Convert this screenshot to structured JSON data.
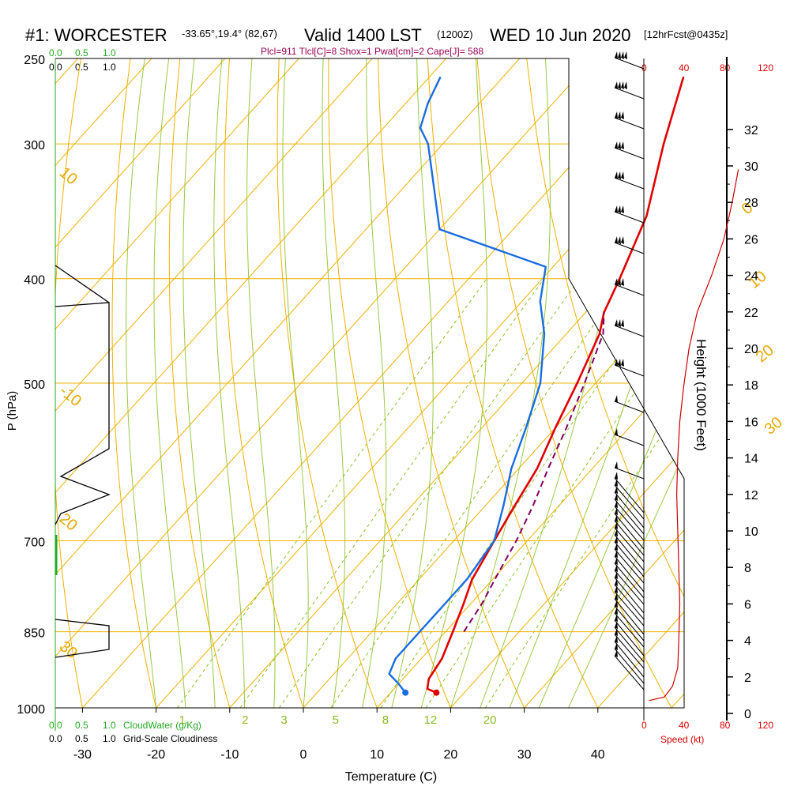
{
  "title": {
    "station": "#1: WORCESTER",
    "coords": "-33.65°,19.4° (82,67)",
    "valid": "Valid 1400 LST",
    "utc": "(1200Z)",
    "date": "WED 10 Jun 2020",
    "forecast": "[12hrFcst@0435z]"
  },
  "indices": "Plcl=911 Tlcl[C]=8 Shox=1 Pwat[cm]=2 Cape[J]= 588",
  "labels": {
    "ylabel": "P (hPa)",
    "xlabel": "Temperature (C)",
    "height_label": "Height (1000 Feet)",
    "speed_label": "Speed (kt)",
    "cloudwater_label": "CloudWater (g/Kg)",
    "cloudiness_label": "Grid-Scale Cloudiness"
  },
  "scales": {
    "cloudwater_ticks": [
      "0.0",
      "0.5",
      "1.0"
    ],
    "cloudiness_ticks": [
      "0.0",
      "0.5",
      "1.0"
    ],
    "speed_ticks": [
      "0",
      "40",
      "80",
      "120"
    ]
  },
  "colors": {
    "temperature": "#e00000",
    "dewpoint": "#1a6de0",
    "parcel": "#800060",
    "isobar": "#f0b000",
    "mixing_ratio": "#88c020",
    "cloudwater": "#22aa22",
    "wind_speed": "#cc0000"
  },
  "chart_data": {
    "type": "line",
    "y_scale": "log-pressure",
    "ylim": [
      1000,
      250
    ],
    "xlim": [
      -35,
      36
    ],
    "pressure_ticks": [
      250,
      300,
      400,
      500,
      700,
      850,
      1000
    ],
    "temperature_ticks": [
      -30,
      -20,
      -10,
      0,
      10,
      20,
      30,
      40
    ],
    "height_ticks": [
      0,
      2,
      4,
      6,
      8,
      10,
      12,
      14,
      16,
      18,
      20,
      22,
      24,
      26,
      28,
      30,
      32
    ],
    "isotherm_labels": [
      "0",
      "10",
      "20",
      "30"
    ],
    "mixing_ratio_labels": [
      "1",
      "2",
      "3",
      "5",
      "8",
      "12",
      "20"
    ],
    "adiabat_labels": [
      "10",
      "-10",
      "20",
      "30"
    ],
    "series": [
      {
        "name": "temperature",
        "points": [
          {
            "p": 968,
            "t": 16.2
          },
          {
            "p": 960,
            "t": 14.5
          },
          {
            "p": 940,
            "t": 13.5
          },
          {
            "p": 900,
            "t": 12.8
          },
          {
            "p": 850,
            "t": 11.0
          },
          {
            "p": 800,
            "t": 9.0
          },
          {
            "p": 760,
            "t": 7.2
          },
          {
            "p": 700,
            "t": 5.5
          },
          {
            "p": 650,
            "t": 4.0
          },
          {
            "p": 600,
            "t": 2.5
          },
          {
            "p": 550,
            "t": 0.0
          },
          {
            "p": 500,
            "t": -2.5
          },
          {
            "p": 450,
            "t": -5.5
          },
          {
            "p": 430,
            "t": -7.5
          },
          {
            "p": 400,
            "t": -9.5
          },
          {
            "p": 350,
            "t": -13.5
          },
          {
            "p": 300,
            "t": -20.0
          },
          {
            "p": 260,
            "t": -25.5
          }
        ]
      },
      {
        "name": "dewpoint",
        "points": [
          {
            "p": 968,
            "t": 12.0
          },
          {
            "p": 950,
            "t": 10.0
          },
          {
            "p": 930,
            "t": 7.5
          },
          {
            "p": 900,
            "t": 6.5
          },
          {
            "p": 850,
            "t": 6.5
          },
          {
            "p": 800,
            "t": 6.5
          },
          {
            "p": 760,
            "t": 6.5
          },
          {
            "p": 700,
            "t": 5.5
          },
          {
            "p": 650,
            "t": 2.5
          },
          {
            "p": 600,
            "t": -1.0
          },
          {
            "p": 550,
            "t": -4.0
          },
          {
            "p": 500,
            "t": -7.5
          },
          {
            "p": 450,
            "t": -13.0
          },
          {
            "p": 420,
            "t": -17.5
          },
          {
            "p": 390,
            "t": -21.0
          },
          {
            "p": 360,
            "t": -40.0
          },
          {
            "p": 300,
            "t": -52.0
          },
          {
            "p": 290,
            "t": -55.0
          },
          {
            "p": 275,
            "t": -57.0
          },
          {
            "p": 260,
            "t": -58.5
          }
        ]
      },
      {
        "name": "parcel",
        "points": [
          {
            "p": 850,
            "t": 12.5
          },
          {
            "p": 800,
            "t": 11.5
          },
          {
            "p": 750,
            "t": 10.0
          },
          {
            "p": 700,
            "t": 8.5
          },
          {
            "p": 650,
            "t": 6.5
          },
          {
            "p": 600,
            "t": 4.0
          },
          {
            "p": 550,
            "t": 1.5
          },
          {
            "p": 500,
            "t": -1.5
          },
          {
            "p": 450,
            "t": -5.0
          },
          {
            "p": 430,
            "t": -7.5
          }
        ]
      }
    ],
    "wind_speed_profile": [
      {
        "h": 0.7,
        "s": 5
      },
      {
        "h": 0.9,
        "s": 20
      },
      {
        "h": 1.5,
        "s": 28
      },
      {
        "h": 2.5,
        "s": 33
      },
      {
        "h": 4,
        "s": 34
      },
      {
        "h": 6,
        "s": 35
      },
      {
        "h": 8,
        "s": 34
      },
      {
        "h": 10,
        "s": 33
      },
      {
        "h": 12,
        "s": 32
      },
      {
        "h": 14,
        "s": 33
      },
      {
        "h": 16,
        "s": 35
      },
      {
        "h": 18,
        "s": 39
      },
      {
        "h": 20,
        "s": 44
      },
      {
        "h": 22,
        "s": 52
      },
      {
        "h": 24,
        "s": 66
      },
      {
        "h": 26,
        "s": 78
      },
      {
        "h": 28,
        "s": 86
      },
      {
        "h": 29.8,
        "s": 92
      }
    ]
  }
}
